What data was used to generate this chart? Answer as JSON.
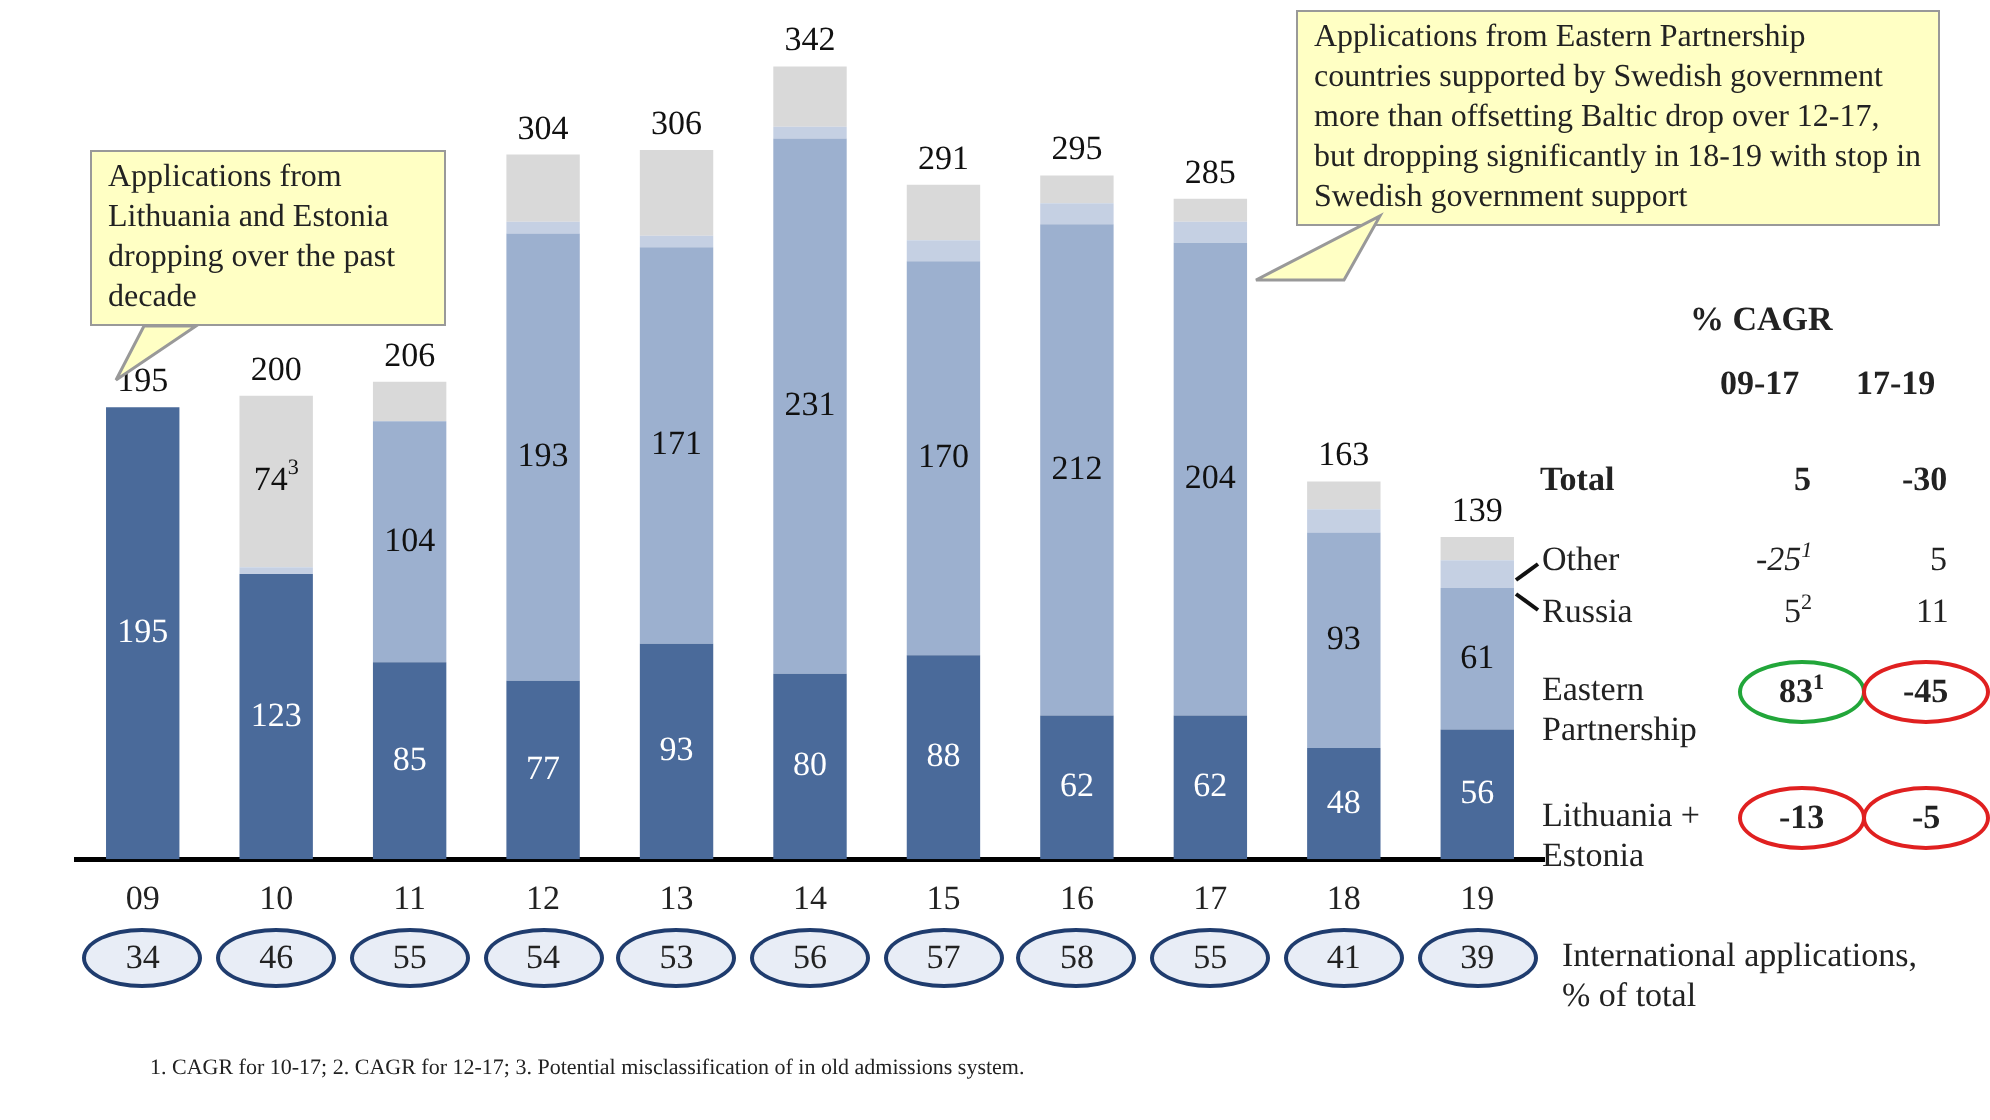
{
  "chart_data": {
    "type": "bar",
    "stacked": true,
    "tick_labels": "x",
    "categories": [
      "09",
      "10",
      "11",
      "12",
      "13",
      "14",
      "15",
      "16",
      "17",
      "18",
      "19"
    ],
    "series": [
      {
        "name": "Lithuania + Estonia",
        "color": "#4a6a9a",
        "values": [
          195,
          123,
          85,
          77,
          93,
          80,
          88,
          62,
          62,
          48,
          56
        ],
        "value_labels": [
          "195",
          "123",
          "85",
          "77",
          "93",
          "80",
          "88",
          "62",
          "62",
          "48",
          "56"
        ]
      },
      {
        "name": "Eastern Partnership",
        "color": "#9cb0cf",
        "values": [
          0,
          0,
          104,
          193,
          171,
          231,
          170,
          212,
          204,
          93,
          61
        ],
        "value_labels": [
          null,
          null,
          "104",
          "193",
          "171",
          "231",
          "170",
          "212",
          "204",
          "93",
          "61"
        ]
      },
      {
        "name": "Russia",
        "color": "#c5d0e3",
        "values": [
          0,
          3,
          0,
          5,
          5,
          5,
          9,
          9,
          9,
          10,
          12
        ]
      },
      {
        "name": "Other",
        "color": "#d9d9d9",
        "values": [
          0,
          74,
          17,
          29,
          37,
          26,
          24,
          12,
          10,
          12,
          10
        ],
        "value_labels": [
          null,
          "74$^{3}$",
          null,
          null,
          null,
          null,
          null,
          null,
          null,
          null,
          null
        ]
      }
    ],
    "totals": [
      "195",
      "200",
      "206",
      "304",
      "306",
      "342",
      "291",
      "295",
      "285",
      "163",
      "139"
    ],
    "annotations": [
      "Applications from Lithuania and Estonia dropping over the past decade",
      "Applications from Eastern Partnership countries supported by Swedish government more than offsetting Baltic drop over 12-17, but dropping significantly in 18-19 with stop in Swedish government support",
      "% CAGR",
      "09-17",
      "17-19",
      "Total",
      "5",
      "-30",
      "-25$^{1}$",
      "5",
      "5$^{2}$",
      "11",
      "83$^{1}$",
      "-45",
      "-13",
      "-5",
      "International applications, % of total",
      "34",
      "46",
      "55",
      "54",
      "53",
      "56",
      "57",
      "58",
      "55",
      "41",
      "39",
      "1. CAGR for 10-17; 2. CAGR for 12-17; 3. Potential misclassification of in old admissions system."
    ]
  }
}
